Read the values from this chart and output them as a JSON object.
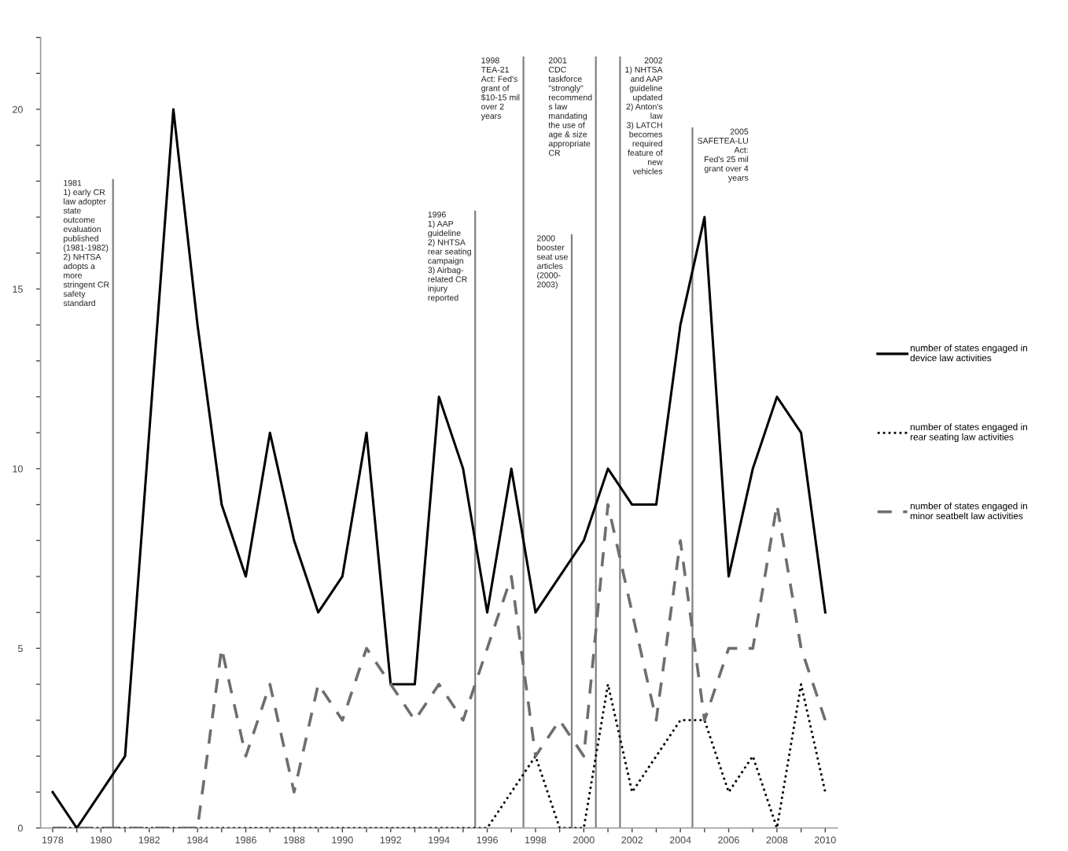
{
  "chart_data": {
    "type": "line",
    "x": [
      1978,
      1979,
      1980,
      1981,
      1982,
      1983,
      1984,
      1985,
      1986,
      1987,
      1988,
      1989,
      1990,
      1991,
      1992,
      1993,
      1994,
      1995,
      1996,
      1997,
      1998,
      1999,
      2000,
      2001,
      2002,
      2003,
      2004,
      2005,
      2006,
      2007,
      2008,
      2009,
      2010
    ],
    "series": [
      {
        "name": "number of states engaged in\ndevice law activities",
        "color": "#000000",
        "line_style": "solid",
        "values": [
          1,
          0,
          1,
          2,
          11,
          20,
          14,
          9,
          7,
          11,
          8,
          6,
          7,
          11,
          4,
          4,
          12,
          10,
          6,
          10,
          6,
          7,
          8,
          10,
          9,
          9,
          14,
          17,
          7,
          10,
          12,
          11,
          6
        ]
      },
      {
        "name": "number of states engaged in\nrear seating law activities",
        "color": "#000000",
        "line_style": "dotted",
        "values": [
          0,
          0,
          0,
          0,
          0,
          0,
          0,
          0,
          0,
          0,
          0,
          0,
          0,
          0,
          0,
          0,
          0,
          0,
          0,
          1,
          2,
          0,
          0,
          4,
          1,
          2,
          3,
          3,
          1,
          2,
          0,
          4,
          1
        ]
      },
      {
        "name": "number of states engaged in\nminor seatbelt law activities",
        "color": "#6e6e6e",
        "line_style": "dashed",
        "values": [
          0,
          0,
          0,
          0,
          0,
          0,
          0,
          5,
          2,
          4,
          1,
          4,
          3,
          5,
          4,
          3,
          4,
          3,
          5,
          7,
          2,
          3,
          2,
          9,
          6,
          3,
          8,
          3,
          5,
          5,
          9,
          5,
          3
        ]
      }
    ],
    "xlim": [
      1977.5,
      2010.5
    ],
    "xticks": [
      1978,
      {
        "value": 1979,
        "label": null
      },
      1980,
      {
        "value": 1981,
        "label": null
      },
      1982,
      {
        "value": 1983,
        "label": null
      },
      1984,
      {
        "value": 1985,
        "label": null
      },
      1986,
      {
        "value": 1987,
        "label": null
      },
      1988,
      {
        "value": 1989,
        "label": null
      },
      1990,
      {
        "value": 1991,
        "label": null
      },
      1992,
      {
        "value": 1993,
        "label": null
      },
      1994,
      {
        "value": 1995,
        "label": null
      },
      1996,
      {
        "value": 1997,
        "label": null
      },
      1998,
      {
        "value": 1999,
        "label": null
      },
      2000,
      {
        "value": 2001,
        "label": null
      },
      2002,
      {
        "value": 2003,
        "label": null
      },
      2004,
      {
        "value": 2005,
        "label": null
      },
      2006,
      {
        "value": 2007,
        "label": null
      },
      2008,
      {
        "value": 2009,
        "label": null
      },
      2010
    ],
    "ylim": [
      0,
      22
    ],
    "yticks": [
      0,
      {
        "value": 1,
        "label": null
      },
      {
        "value": 2,
        "label": null
      },
      {
        "value": 3,
        "label": null
      },
      {
        "value": 4,
        "label": null
      },
      5,
      {
        "value": 6,
        "label": null
      },
      {
        "value": 7,
        "label": null
      },
      {
        "value": 8,
        "label": null
      },
      {
        "value": 9,
        "label": null
      },
      10,
      {
        "value": 11,
        "label": null
      },
      {
        "value": 12,
        "label": null
      },
      {
        "value": 13,
        "label": null
      },
      {
        "value": 14,
        "label": null
      },
      15,
      {
        "value": 16,
        "label": null
      },
      {
        "value": 17,
        "label": null
      },
      {
        "value": 18,
        "label": null
      },
      {
        "value": 19,
        "label": null
      },
      20,
      {
        "value": 21,
        "label": null
      },
      {
        "value": 22,
        "label": null
      }
    ],
    "ref_lines": [
      {
        "axis": "x",
        "value": 1980.5,
        "color": "#808080",
        "label": "1981\n1) early CR\nlaw adopter\nstate\noutcome\nevaluation\npublished\n(1981-1982)\n2) NHTSA\nadopts a\nmore\nstringent CR\nsafety\nstandard"
      },
      {
        "axis": "x",
        "value": 1995.5,
        "color": "#808080",
        "label": "1996\n1) AAP\nguideline\n2) NHTSA\nrear seating\ncampaign\n3) Airbag-\nrelated CR\ninjury\nreported"
      },
      {
        "axis": "x",
        "value": 1997.5,
        "color": "#808080",
        "label": "1998\nTEA-21\nAct: Fed's\ngrant of\n$10-15 mil\nover 2\nyears"
      },
      {
        "axis": "x",
        "value": 1999.5,
        "color": "#808080",
        "label": "2000\nbooster\nseat use\narticles\n(2000-\n2003)"
      },
      {
        "axis": "x",
        "value": 2000.5,
        "color": "#808080",
        "label": "2001\nCDC\ntaskforce\n\"strongly\"\nrecommend\ns law\nmandating\nthe use of\nage & size\nappropriate\nCR"
      },
      {
        "axis": "x",
        "value": 2001.5,
        "color": "#808080",
        "label": "2002\n1) NHTSA\nand AAP\nguideline\nupdated\n2) Anton's\nlaw\n3) LATCH\nbecomes\nrequired\nfeature of\nnew\nvehicles"
      },
      {
        "axis": "x",
        "value": 2004.5,
        "color": "#808080",
        "label": "2005\nSAFETEA-LU\nAct:\nFed's 25 mil\ngrant over 4\nyears"
      }
    ],
    "grid": false,
    "legend": "right"
  }
}
